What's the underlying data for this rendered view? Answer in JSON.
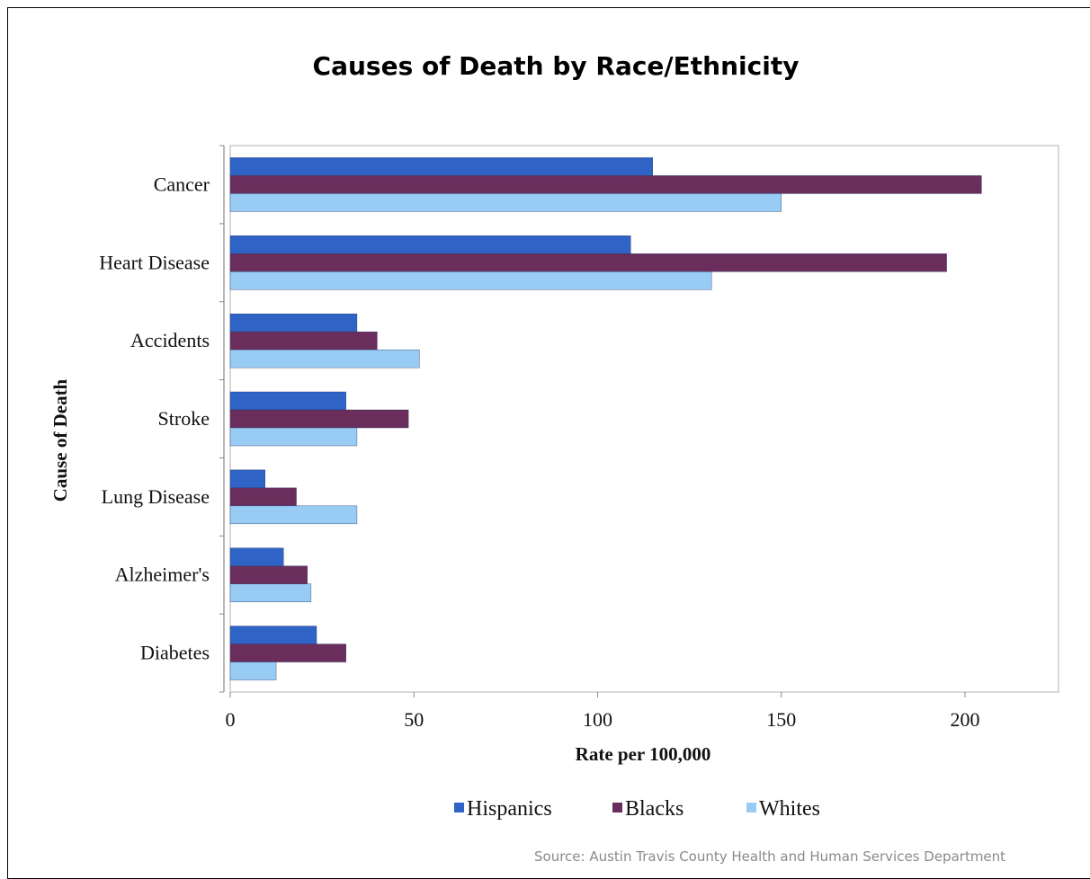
{
  "chart_data": {
    "type": "bar",
    "orientation": "horizontal",
    "title": "Causes of Death by Race/Ethnicity",
    "xlabel": "Rate per 100,000",
    "ylabel": "Cause of Death",
    "categories": [
      "Cancer",
      "Heart Disease",
      "Accidents",
      "Stroke",
      "Lung Disease",
      "Alzheimer's",
      "Diabetes"
    ],
    "series": [
      {
        "name": "Hispanics",
        "color": "#2f63c5",
        "values": [
          115,
          109,
          34.5,
          31.5,
          9.5,
          14.5,
          23.5
        ]
      },
      {
        "name": "Blacks",
        "color": "#6b2d5c",
        "values": [
          204.5,
          195,
          40,
          48.5,
          18,
          21,
          31.5
        ]
      },
      {
        "name": "Whites",
        "color": "#99ccf5",
        "values": [
          150,
          131,
          51.5,
          34.5,
          34.5,
          22,
          12.5
        ]
      }
    ],
    "xlim": [
      0,
      225
    ],
    "xticks": [
      0,
      50,
      100,
      150,
      200
    ],
    "grid": false,
    "legend_position": "bottom-center"
  },
  "source_note": "Source: Austin Travis County Health and Human Services Department"
}
